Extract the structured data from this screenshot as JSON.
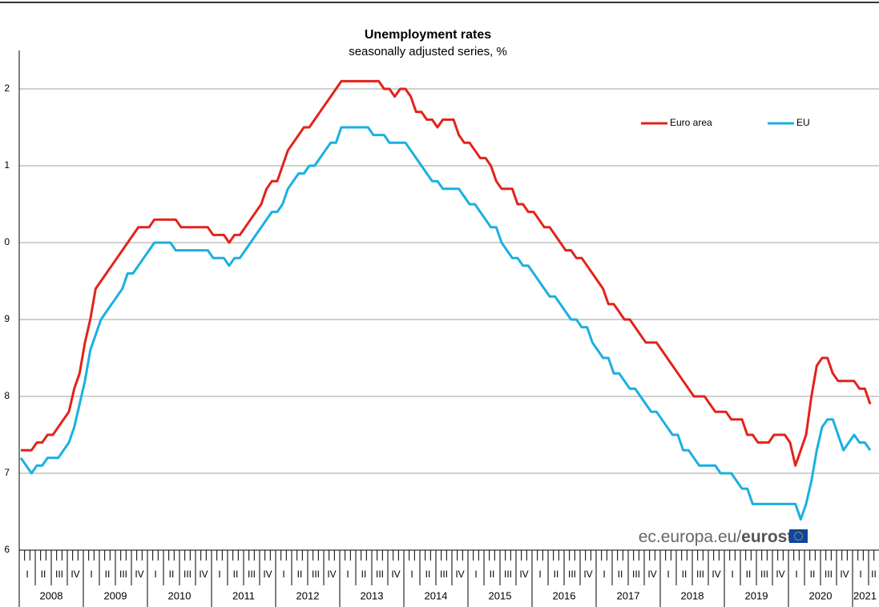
{
  "chart_data": {
    "type": "line",
    "title": "Unemployment rates",
    "subtitle": "seasonally adjusted series, %",
    "years": [
      "2008",
      "2009",
      "2010",
      "2011",
      "2012",
      "2013",
      "2014",
      "2015",
      "2016",
      "2017",
      "2018",
      "2019",
      "2020",
      "2021"
    ],
    "quarter_labels": [
      "I",
      "II",
      "III",
      "IV"
    ],
    "ylim": [
      6,
      12.5
    ],
    "yticks": [
      6,
      7,
      8,
      9,
      {
        "value": 10,
        "label": "0"
      },
      {
        "value": 11,
        "label": "1"
      },
      {
        "value": 12,
        "label": "2"
      }
    ],
    "grid": true,
    "legend": "top-right",
    "series": [
      {
        "name": "Euro area",
        "color": "#e2231a",
        "values": [
          7.3,
          7.3,
          7.3,
          7.4,
          7.4,
          7.5,
          7.5,
          7.6,
          7.7,
          7.8,
          8.1,
          8.3,
          8.7,
          9.0,
          9.4,
          9.5,
          9.6,
          9.7,
          9.8,
          9.9,
          10.0,
          10.1,
          10.2,
          10.2,
          10.2,
          10.3,
          10.3,
          10.3,
          10.3,
          10.3,
          10.2,
          10.2,
          10.2,
          10.2,
          10.2,
          10.2,
          10.1,
          10.1,
          10.1,
          10.0,
          10.1,
          10.1,
          10.2,
          10.3,
          10.4,
          10.5,
          10.7,
          10.8,
          10.8,
          11.0,
          11.2,
          11.3,
          11.4,
          11.5,
          11.5,
          11.6,
          11.7,
          11.8,
          11.9,
          12.0,
          12.1,
          12.1,
          12.1,
          12.1,
          12.1,
          12.1,
          12.1,
          12.1,
          12.0,
          12.0,
          11.9,
          12.0,
          12.0,
          11.9,
          11.7,
          11.7,
          11.6,
          11.6,
          11.5,
          11.6,
          11.6,
          11.6,
          11.4,
          11.3,
          11.3,
          11.2,
          11.1,
          11.1,
          11.0,
          10.8,
          10.7,
          10.7,
          10.7,
          10.5,
          10.5,
          10.4,
          10.4,
          10.3,
          10.2,
          10.2,
          10.1,
          10.0,
          9.9,
          9.9,
          9.8,
          9.8,
          9.7,
          9.6,
          9.5,
          9.4,
          9.2,
          9.2,
          9.1,
          9.0,
          9.0,
          8.9,
          8.8,
          8.7,
          8.7,
          8.7,
          8.6,
          8.5,
          8.4,
          8.3,
          8.2,
          8.1,
          8.0,
          8.0,
          8.0,
          7.9,
          7.8,
          7.8,
          7.8,
          7.7,
          7.7,
          7.7,
          7.5,
          7.5,
          7.4,
          7.4,
          7.4,
          7.5,
          7.5,
          7.5,
          7.4,
          7.1,
          7.3,
          7.5,
          8.0,
          8.4,
          8.5,
          8.5,
          8.3,
          8.2,
          8.2,
          8.2,
          8.2,
          8.1,
          8.1,
          7.9
        ]
      },
      {
        "name": "EU",
        "color": "#1ab0e0",
        "values": [
          7.2,
          7.1,
          7.0,
          7.1,
          7.1,
          7.2,
          7.2,
          7.2,
          7.3,
          7.4,
          7.6,
          7.9,
          8.2,
          8.6,
          8.8,
          9.0,
          9.1,
          9.2,
          9.3,
          9.4,
          9.6,
          9.6,
          9.7,
          9.8,
          9.9,
          10.0,
          10.0,
          10.0,
          10.0,
          9.9,
          9.9,
          9.9,
          9.9,
          9.9,
          9.9,
          9.9,
          9.8,
          9.8,
          9.8,
          9.7,
          9.8,
          9.8,
          9.9,
          10.0,
          10.1,
          10.2,
          10.3,
          10.4,
          10.4,
          10.5,
          10.7,
          10.8,
          10.9,
          10.9,
          11.0,
          11.0,
          11.1,
          11.2,
          11.3,
          11.3,
          11.5,
          11.5,
          11.5,
          11.5,
          11.5,
          11.5,
          11.4,
          11.4,
          11.4,
          11.3,
          11.3,
          11.3,
          11.3,
          11.2,
          11.1,
          11.0,
          10.9,
          10.8,
          10.8,
          10.7,
          10.7,
          10.7,
          10.7,
          10.6,
          10.5,
          10.5,
          10.4,
          10.3,
          10.2,
          10.2,
          10.0,
          9.9,
          9.8,
          9.8,
          9.7,
          9.7,
          9.6,
          9.5,
          9.4,
          9.3,
          9.3,
          9.2,
          9.1,
          9.0,
          9.0,
          8.9,
          8.9,
          8.7,
          8.6,
          8.5,
          8.5,
          8.3,
          8.3,
          8.2,
          8.1,
          8.1,
          8.0,
          7.9,
          7.8,
          7.8,
          7.7,
          7.6,
          7.5,
          7.5,
          7.3,
          7.3,
          7.2,
          7.1,
          7.1,
          7.1,
          7.1,
          7.0,
          7.0,
          7.0,
          6.9,
          6.8,
          6.8,
          6.6,
          6.6,
          6.6,
          6.6,
          6.6,
          6.6,
          6.6,
          6.6,
          6.6,
          6.4,
          6.6,
          6.9,
          7.3,
          7.6,
          7.7,
          7.7,
          7.5,
          7.3,
          7.4,
          7.5,
          7.4,
          7.4,
          7.3
        ]
      }
    ],
    "watermark": {
      "site": "ec.europa.eu/",
      "brand": "eurostat"
    }
  }
}
